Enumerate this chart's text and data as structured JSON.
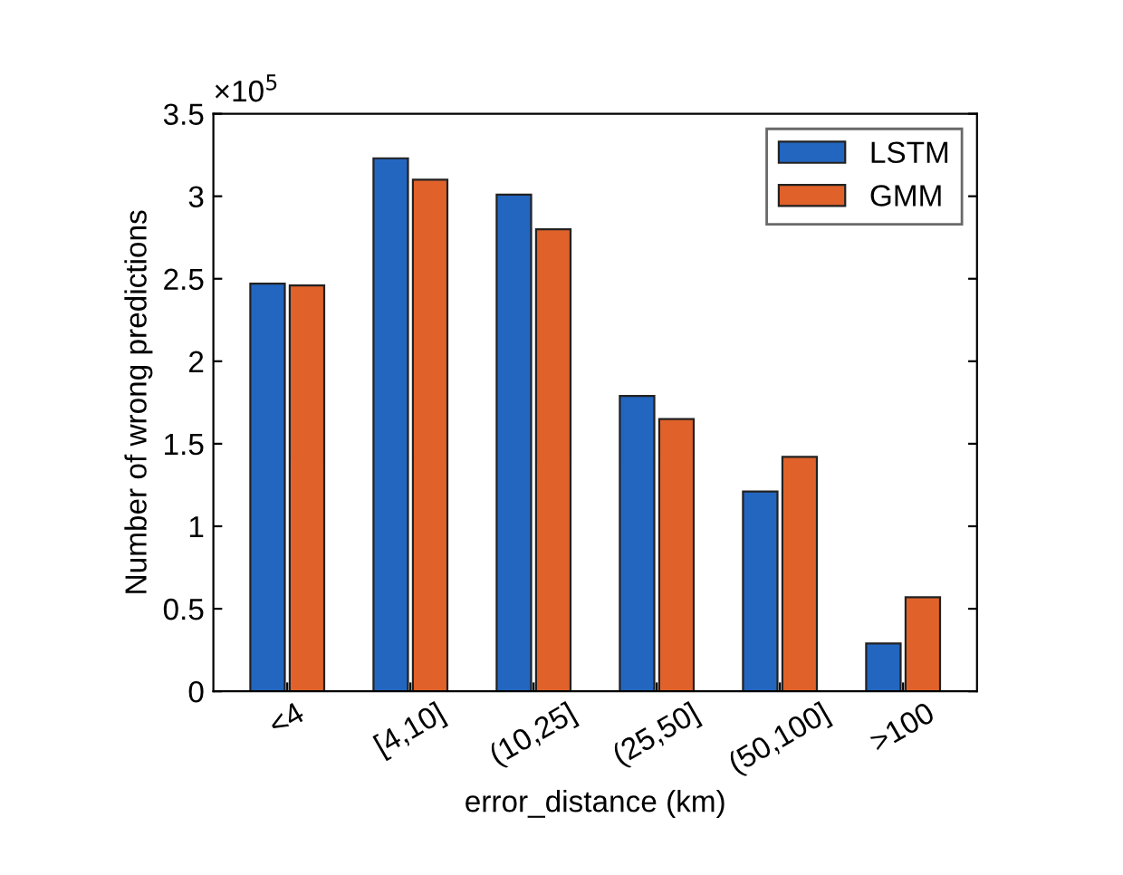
{
  "chart_data": {
    "type": "bar",
    "xlabel": "error_distance (km)",
    "ylabel": "Number of wrong predictions",
    "annotations": [
      "×10$^{5}$"
    ],
    "categories": [
      "<4",
      "[4,10]",
      "(10,25]",
      "(25,50]",
      "(50,100]",
      ">100"
    ],
    "series": [
      {
        "name": "LSTM",
        "color": "#2366c0",
        "values": [
          2.47,
          3.23,
          3.01,
          1.79,
          1.21,
          0.29
        ]
      },
      {
        "name": "GMM",
        "color": "#e0622a",
        "values": [
          2.46,
          3.1,
          2.8,
          1.65,
          1.42,
          0.57
        ]
      }
    ],
    "ylim": [
      0,
      3.5
    ],
    "yticks": [
      0,
      0.5,
      1,
      1.5,
      2,
      2.5,
      3,
      3.5
    ],
    "grid": false,
    "legend": "top right"
  }
}
